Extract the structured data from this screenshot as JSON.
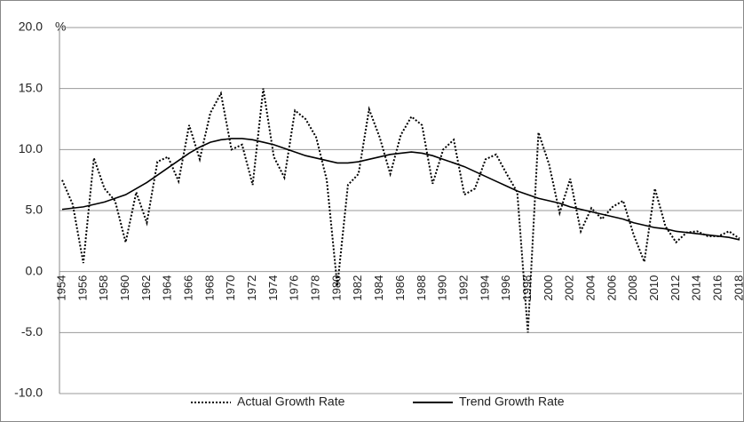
{
  "chart_data": {
    "type": "line",
    "unit": "%",
    "categories": [
      "1954",
      null,
      "1956",
      null,
      "1958",
      null,
      "1960",
      null,
      "1962",
      null,
      "1964",
      null,
      "1966",
      null,
      "1968",
      null,
      "1970",
      null,
      "1972",
      null,
      "1974",
      null,
      "1976",
      null,
      "1978",
      null,
      "1980",
      null,
      "1982",
      null,
      "1984",
      null,
      "1986",
      null,
      "1988",
      null,
      "1990",
      null,
      "1992",
      null,
      "1994",
      null,
      "1996",
      null,
      "1998",
      null,
      "2000",
      null,
      "2002",
      null,
      "2004",
      null,
      "2006",
      null,
      "2008",
      null,
      "2010",
      null,
      "2012",
      null,
      "2014",
      null,
      "2016",
      null,
      "2018"
    ],
    "series": [
      {
        "name": "Actual Growth Rate",
        "color": "#000000",
        "style": "dotted",
        "values": [
          7.5,
          5.5,
          0.7,
          9.3,
          6.8,
          5.8,
          2.4,
          6.5,
          4.0,
          9.0,
          9.4,
          7.4,
          12.0,
          9.2,
          13.0,
          14.6,
          10.0,
          10.4,
          7.1,
          15.0,
          9.4,
          7.7,
          13.2,
          12.5,
          11.0,
          7.5,
          -1.2,
          7.1,
          8.0,
          13.3,
          11.0,
          8.0,
          11.2,
          12.7,
          12.0,
          7.2,
          10.0,
          10.8,
          6.3,
          6.8,
          9.2,
          9.6,
          8.0,
          6.5,
          -5.0,
          11.4,
          8.8,
          4.8,
          7.6,
          3.3,
          5.2,
          4.3,
          5.3,
          5.8,
          3.0,
          0.8,
          6.8,
          3.7,
          2.4,
          3.2,
          3.3,
          2.9,
          2.9,
          3.3,
          2.7
        ]
      },
      {
        "name": "Trend Growth Rate",
        "color": "#000000",
        "style": "solid",
        "values": [
          5.1,
          5.2,
          5.3,
          5.5,
          5.7,
          6.0,
          6.3,
          6.8,
          7.3,
          7.9,
          8.5,
          9.1,
          9.7,
          10.2,
          10.6,
          10.8,
          10.9,
          10.9,
          10.8,
          10.6,
          10.4,
          10.1,
          9.8,
          9.5,
          9.3,
          9.1,
          8.9,
          8.9,
          9.0,
          9.2,
          9.4,
          9.6,
          9.7,
          9.8,
          9.7,
          9.5,
          9.2,
          8.9,
          8.6,
          8.2,
          7.8,
          7.4,
          7.0,
          6.6,
          6.3,
          6.0,
          5.8,
          5.6,
          5.3,
          5.1,
          4.9,
          4.7,
          4.5,
          4.3,
          4.0,
          3.8,
          3.6,
          3.5,
          3.3,
          3.2,
          3.1,
          3.0,
          2.9,
          2.8,
          2.6
        ]
      }
    ],
    "ylim": [
      -10,
      20
    ],
    "yticks": [
      {
        "value": -10,
        "label": "-10.0"
      },
      {
        "value": -5,
        "label": "-5.0"
      },
      {
        "value": 0,
        "label": "0.0"
      },
      {
        "value": 5,
        "label": "5.0"
      },
      {
        "value": 10,
        "label": "10.0"
      },
      {
        "value": 15,
        "label": "15.0"
      },
      {
        "value": 20,
        "label": "20.0"
      }
    ],
    "grid": true,
    "legend": "bottom"
  }
}
